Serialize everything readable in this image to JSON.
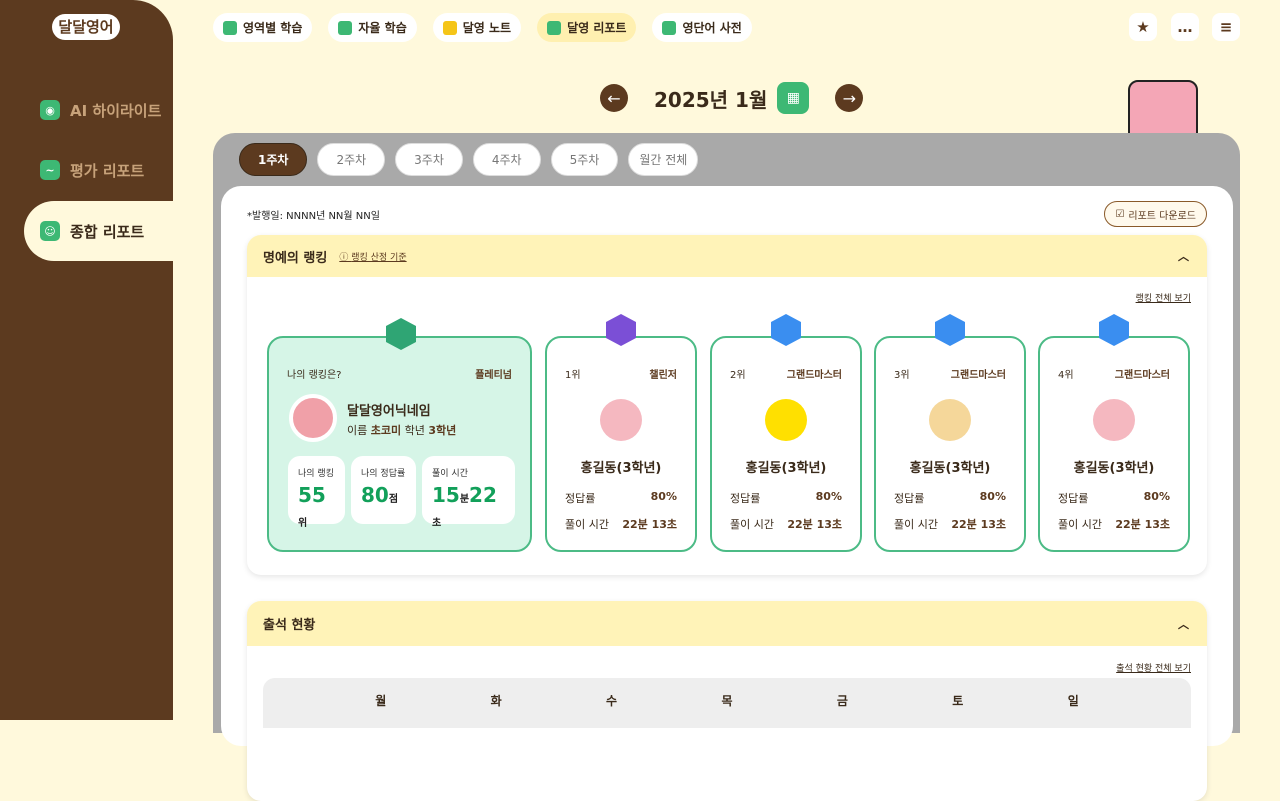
{
  "logo": "달달영어",
  "sidebar": {
    "items": [
      {
        "label": "AI 하이라이트",
        "icon": "robot-icon"
      },
      {
        "label": "평가 리포트",
        "icon": "chart-icon"
      },
      {
        "label": "종합 리포트",
        "icon": "report-icon",
        "active": true
      }
    ]
  },
  "topnav": [
    {
      "label": "영역별 학습"
    },
    {
      "label": "자율 학습"
    },
    {
      "label": "달영 노트"
    },
    {
      "label": "달영 리포트",
      "active": true
    },
    {
      "label": "영단어 사전"
    }
  ],
  "month": {
    "title": "2025년 1월"
  },
  "tabs": [
    {
      "label": "1주차",
      "active": true
    },
    {
      "label": "2주차"
    },
    {
      "label": "3주차"
    },
    {
      "label": "4주차"
    },
    {
      "label": "5주차"
    },
    {
      "label": "월간 전체"
    }
  ],
  "issued": "*발행일: NNNN년 NN월 NN일",
  "download": "리포트 다운로드",
  "ranking": {
    "title": "명예의 랭킹",
    "criteria": "랭킹 산정 기준",
    "more": "랭킹 전체 보기",
    "my": {
      "question": "나의 랭킹은?",
      "tier": "플레티넘",
      "nickname": "달달영어닉네임",
      "name_label": "이름",
      "name": "초코미",
      "grade_label": "학년",
      "grade": "3학년",
      "rank_label": "나의 랭킹",
      "rank": "55",
      "rank_unit": "위",
      "score_label": "나의 정답률",
      "score": "80",
      "score_unit": "점",
      "time_label": "풀이 시간",
      "min": "15",
      "min_unit": "분",
      "sec": "22",
      "sec_unit": "초"
    },
    "others": [
      {
        "rank": "1위",
        "tier": "챌린저",
        "name": "홍길동(3학년)",
        "acc_label": "정답률",
        "acc": "80%",
        "time_label": "풀이 시간",
        "time": "22분 13초",
        "badge": "#7b4fd6",
        "avatar": "#f5b8c0"
      },
      {
        "rank": "2위",
        "tier": "그랜드마스터",
        "name": "홍길동(3학년)",
        "acc_label": "정답률",
        "acc": "80%",
        "time_label": "풀이 시간",
        "time": "22분 13초",
        "badge": "#3a8ef0",
        "avatar": "#ffe000"
      },
      {
        "rank": "3위",
        "tier": "그랜드마스터",
        "name": "홍길동(3학년)",
        "acc_label": "정답률",
        "acc": "80%",
        "time_label": "풀이 시간",
        "time": "22분 13초",
        "badge": "#3a8ef0",
        "avatar": "#f5d79a"
      },
      {
        "rank": "4위",
        "tier": "그랜드마스터",
        "name": "홍길동(3학년)",
        "acc_label": "정답률",
        "acc": "80%",
        "time_label": "풀이 시간",
        "time": "22분 13초",
        "badge": "#3a8ef0",
        "avatar": "#f5b8c0"
      }
    ]
  },
  "attendance": {
    "title": "출석 현황",
    "more": "출석 현황 전체 보기",
    "days": [
      "월",
      "화",
      "수",
      "목",
      "금",
      "토",
      "일"
    ]
  }
}
